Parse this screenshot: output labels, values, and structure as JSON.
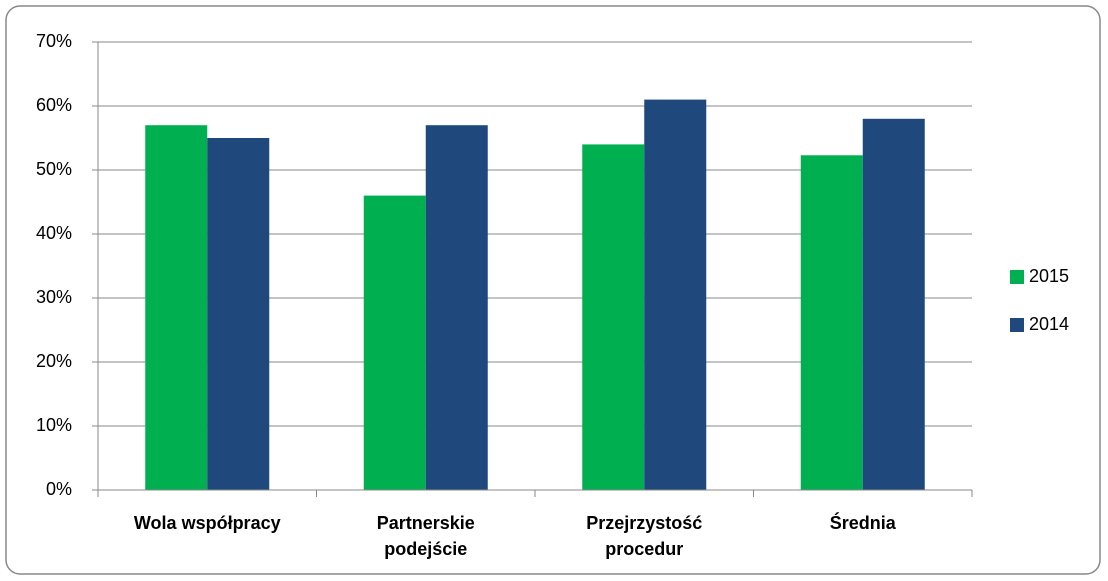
{
  "chart_data": {
    "type": "bar",
    "categories": [
      "Wola współpracy",
      "Partnerskie podejście",
      "Przejrzystość procedur",
      "Średnia"
    ],
    "series": [
      {
        "name": "2015",
        "color": "#00b050",
        "values": [
          57,
          46,
          54,
          52.3
        ]
      },
      {
        "name": "2014",
        "color": "#1f497d",
        "values": [
          55,
          57,
          61,
          58
        ]
      }
    ],
    "ylim": [
      0,
      70
    ],
    "yticks": [
      {
        "value": 0,
        "label": "0%"
      },
      {
        "value": 10,
        "label": "10%"
      },
      {
        "value": 20,
        "label": "20%"
      },
      {
        "value": 30,
        "label": "30%"
      },
      {
        "value": 40,
        "label": "40%"
      },
      {
        "value": 50,
        "label": "50%"
      },
      {
        "value": 60,
        "label": "60%"
      },
      {
        "value": 70,
        "label": "70%"
      }
    ],
    "grid": true,
    "legend": "right"
  }
}
